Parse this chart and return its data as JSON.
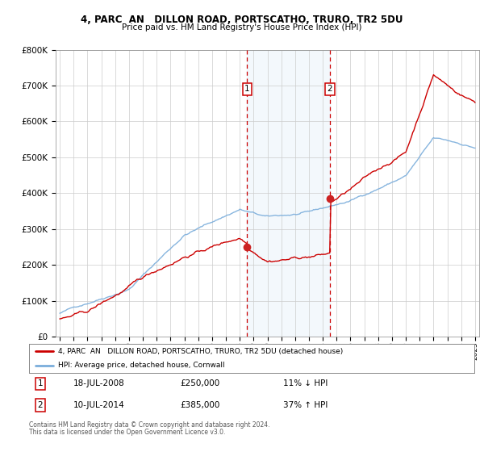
{
  "title": "4, PARC  AN   DILLON ROAD, PORTSCATHO, TRURO, TR2 5DU",
  "subtitle": "Price paid vs. HM Land Registry's House Price Index (HPI)",
  "legend_line1": "4, PARC  AN   DILLON ROAD, PORTSCATHO, TRURO, TR2 5DU (detached house)",
  "legend_line2": "HPI: Average price, detached house, Cornwall",
  "footer1": "Contains HM Land Registry data © Crown copyright and database right 2024.",
  "footer2": "This data is licensed under the Open Government Licence v3.0.",
  "table": [
    {
      "num": "1",
      "date": "18-JUL-2008",
      "price": "£250,000",
      "pct": "11% ↓ HPI"
    },
    {
      "num": "2",
      "date": "10-JUL-2014",
      "price": "£385,000",
      "pct": "37% ↑ HPI"
    }
  ],
  "purchase1_year": 2008.54,
  "purchase1_price": 250000,
  "purchase2_year": 2014.52,
  "purchase2_price": 385000,
  "red_color": "#cc0000",
  "blue_color": "#7aaddb",
  "ylim": [
    0,
    800000
  ],
  "yticks": [
    0,
    100000,
    200000,
    300000,
    400000,
    500000,
    600000,
    700000,
    800000
  ],
  "xlim": [
    1994.7,
    2025.3
  ]
}
